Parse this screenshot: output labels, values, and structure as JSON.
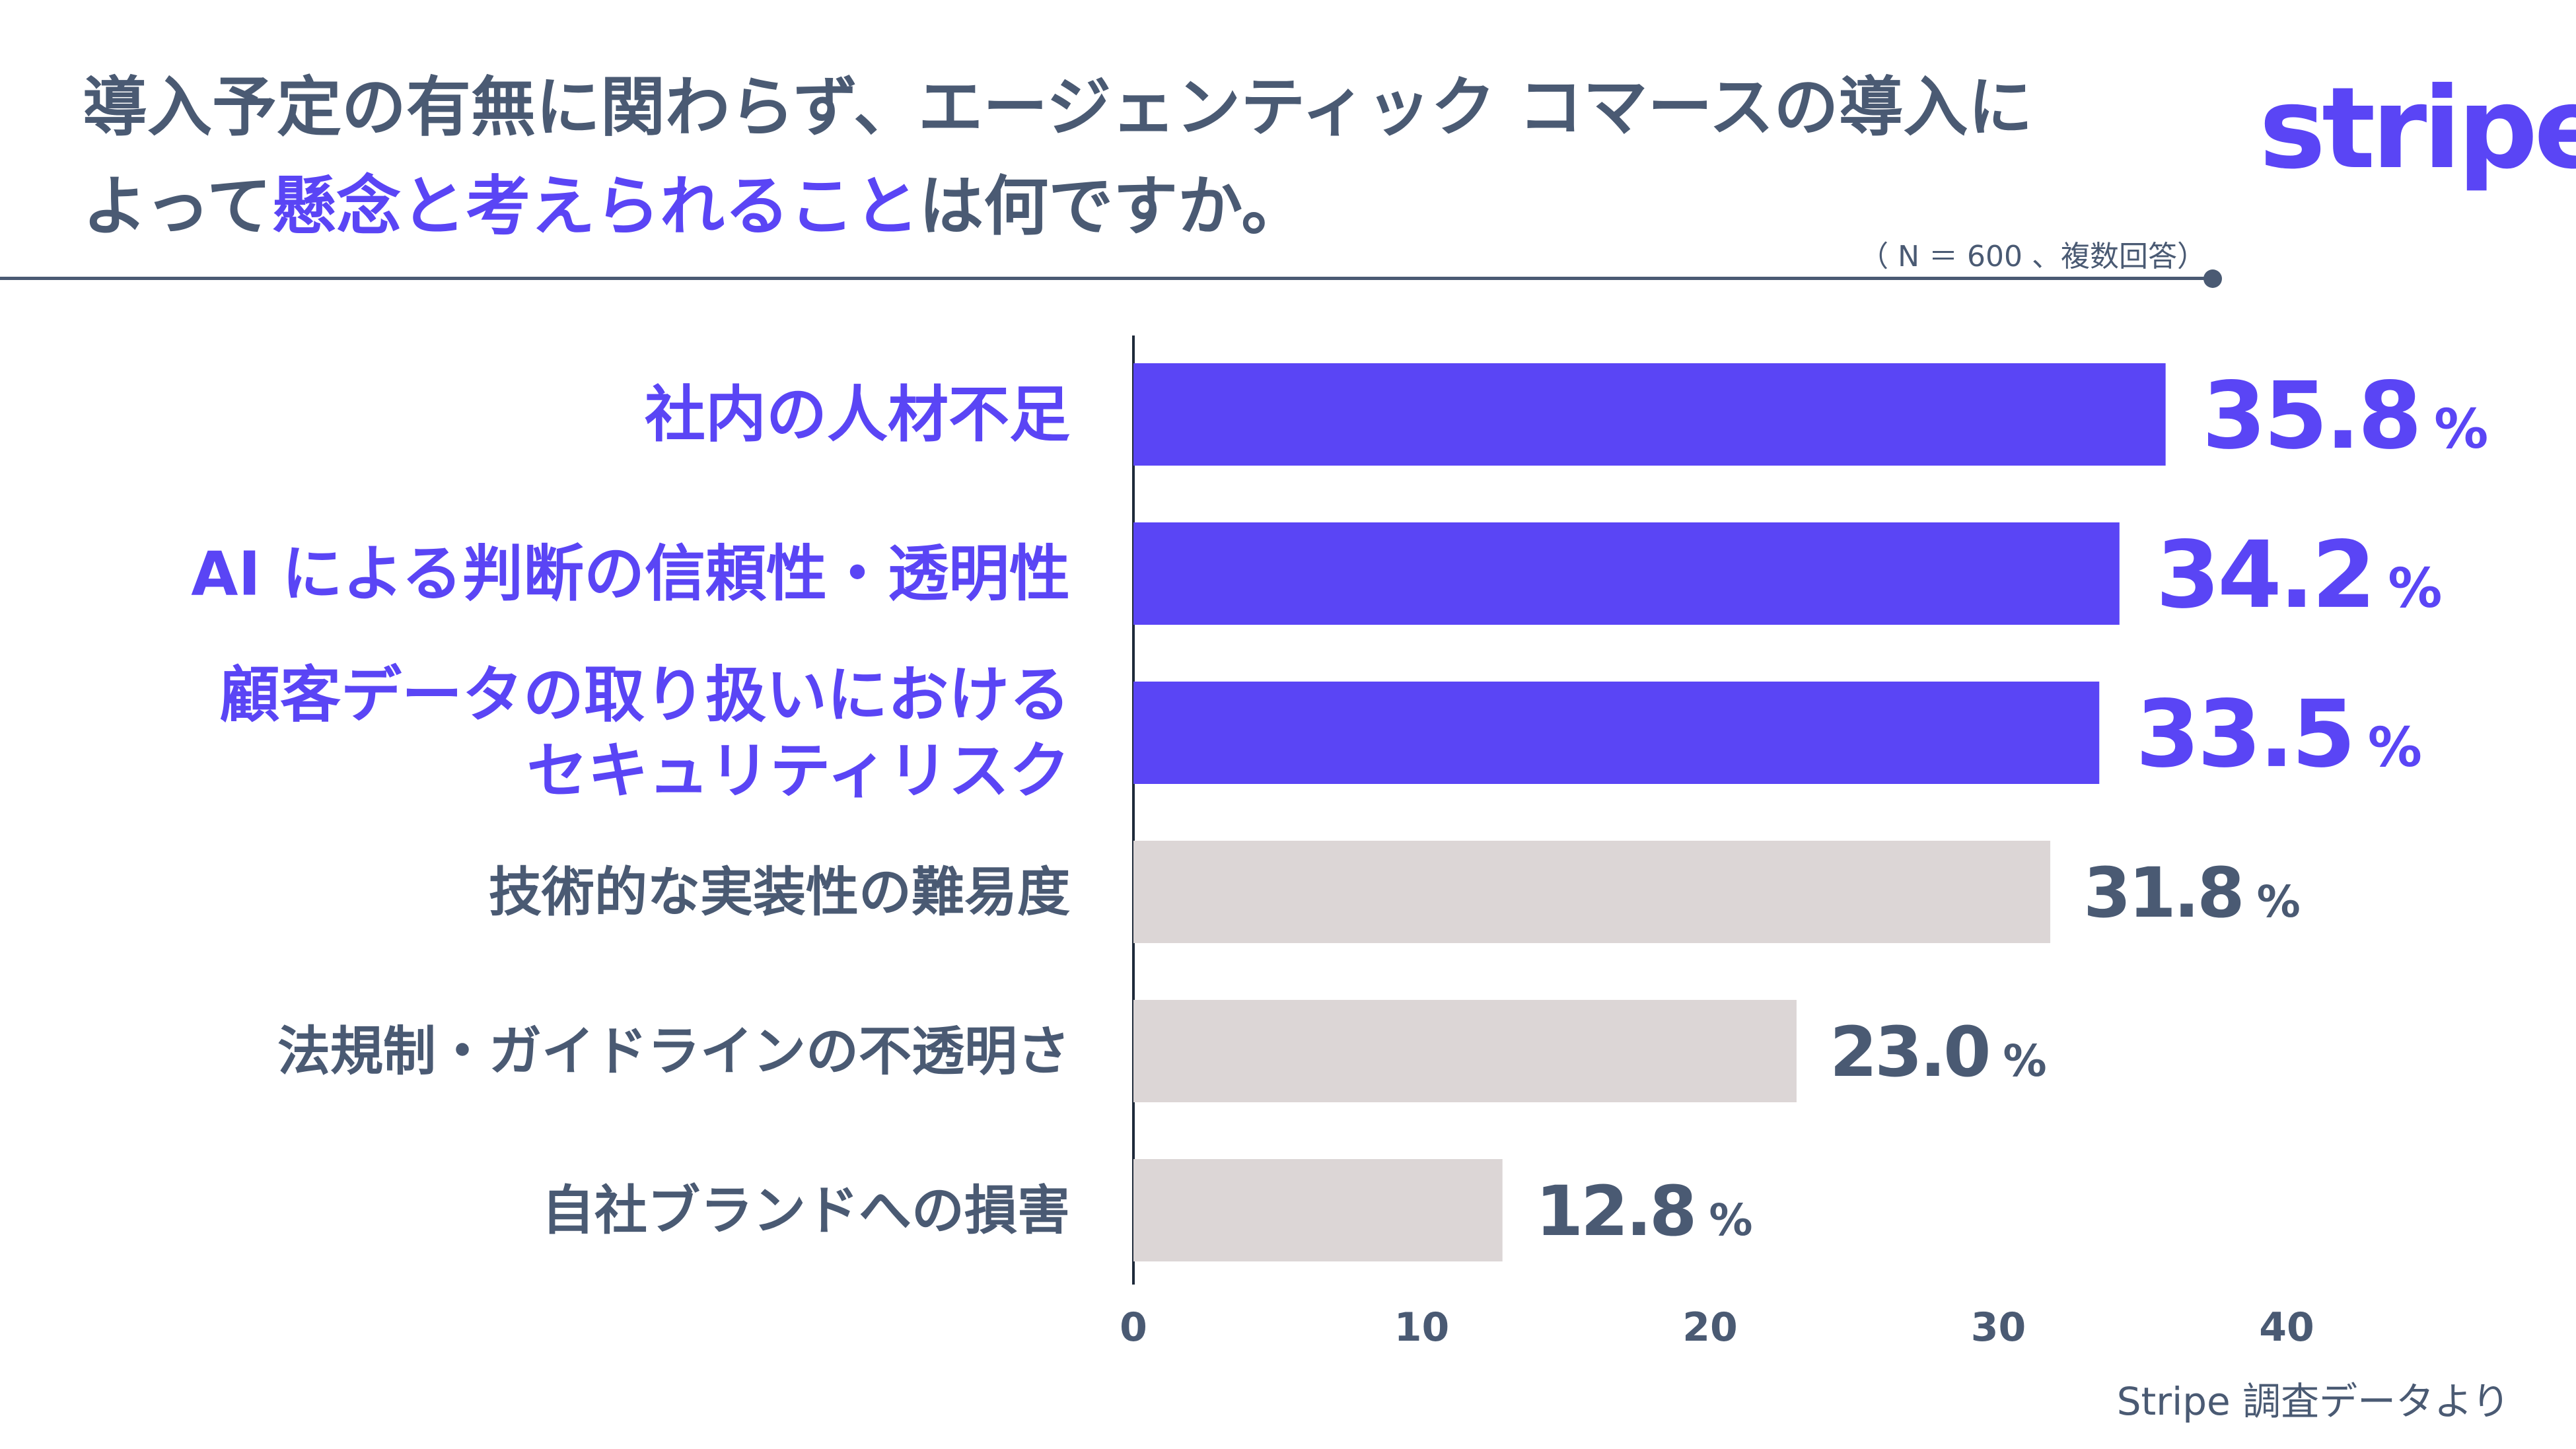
{
  "header": {
    "title_part1": "導入予定の有無に関わらず、エージェンティック コマースの導入に",
    "title_part2a": "よって",
    "title_part2b": "懸念と考えられること",
    "title_part2c": "は何ですか。",
    "note": "（ N ＝ 600 、複数回答）",
    "logo": "stripe"
  },
  "footer": {
    "source": "Stripe 調査データより"
  },
  "colors": {
    "accent": "#5a45f5",
    "muted_bar": "#dcd6d6",
    "text": "#4a5a73"
  },
  "chart_data": {
    "type": "bar",
    "orientation": "horizontal",
    "categories": [
      [
        "社内の人材不足"
      ],
      [
        "AI による判断の信頼性・透明性"
      ],
      [
        "顧客データの取り扱いにおける",
        "セキュリティリスク"
      ],
      [
        "技術的な実装性の難易度"
      ],
      [
        "法規制・ガイドラインの不透明さ"
      ],
      [
        "自社ブランドへの損害"
      ]
    ],
    "values": [
      35.8,
      34.2,
      33.5,
      31.8,
      23.0,
      12.8
    ],
    "value_labels": [
      "35.8",
      "34.2",
      "33.5",
      "31.8",
      "23.0",
      "12.8"
    ],
    "unit": "%",
    "highlighted": [
      true,
      true,
      true,
      false,
      false,
      false
    ],
    "x_ticks": [
      "0",
      "10",
      "20",
      "30",
      "40"
    ],
    "xlim": [
      0,
      40
    ],
    "grid": false
  }
}
